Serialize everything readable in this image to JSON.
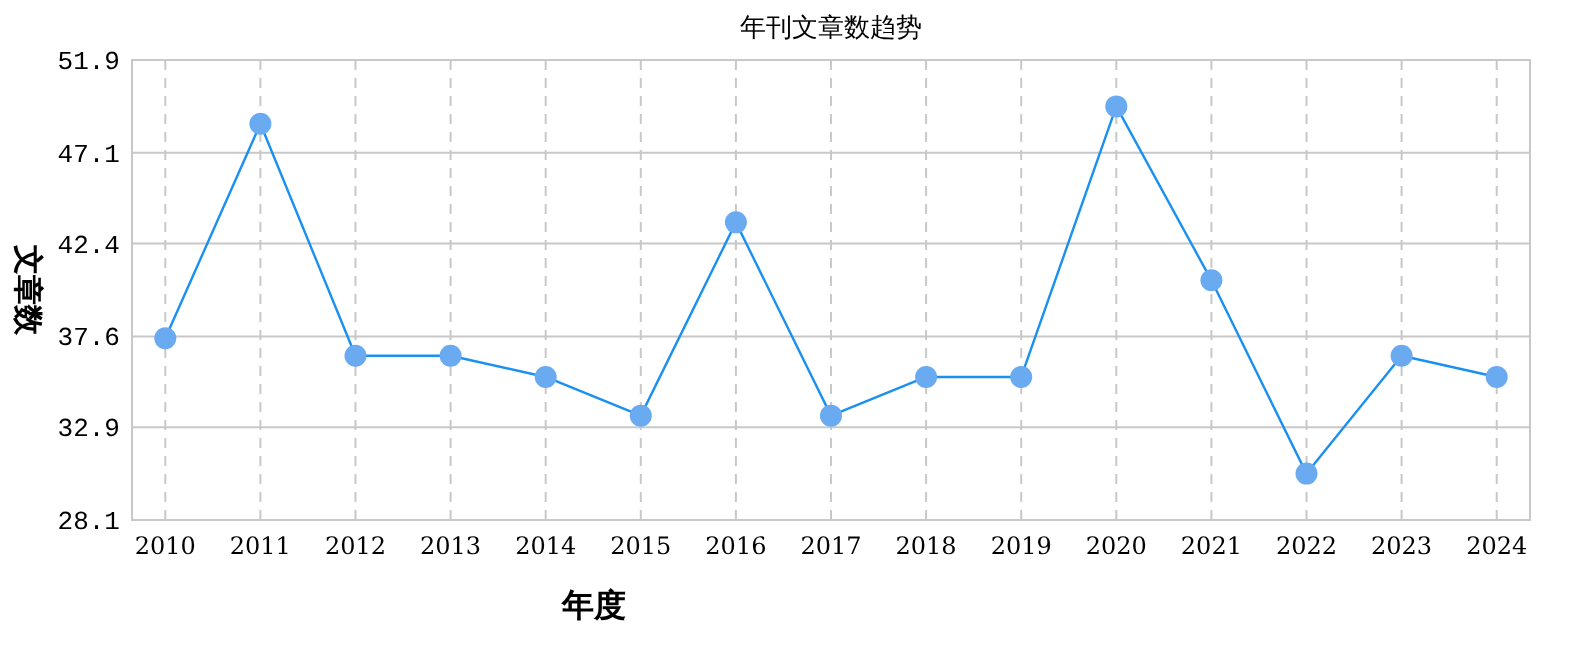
{
  "chart_data": {
    "type": "line",
    "title": "年刊文章数趋势",
    "xlabel": "年度",
    "ylabel": "文章数",
    "categories": [
      "2010",
      "2011",
      "2012",
      "2013",
      "2014",
      "2015",
      "2016",
      "2017",
      "2018",
      "2019",
      "2020",
      "2021",
      "2022",
      "2023",
      "2024"
    ],
    "series": [
      {
        "color": "#1a90f0",
        "values": [
          37.5,
          48.6,
          36.6,
          36.6,
          35.5,
          33.5,
          43.5,
          33.5,
          35.5,
          35.5,
          49.5,
          40.5,
          30.5,
          36.6,
          35.5
        ]
      }
    ],
    "ylim": [
      28.1,
      51.9
    ],
    "yticks": [
      28.1,
      32.9,
      37.6,
      42.4,
      47.1,
      51.9
    ],
    "grid": true,
    "marker": "circle",
    "line_style": "solid"
  }
}
